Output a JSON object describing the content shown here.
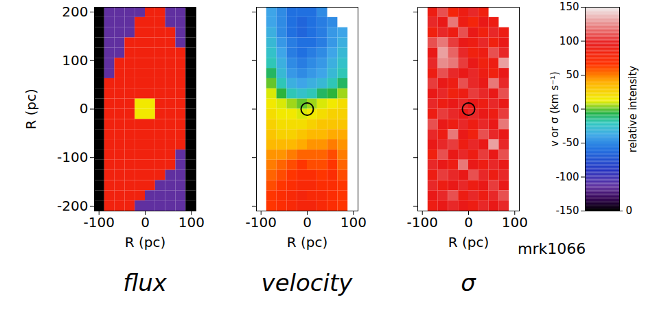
{
  "chart_data": [
    {
      "type": "heatmap",
      "title": "flux",
      "x_label": "R (pc)",
      "y_label": "R (pc)",
      "xlim": [
        -110,
        110
      ],
      "ylim": [
        -210,
        210
      ],
      "xticks": [
        -100,
        0,
        100
      ],
      "yticks": [
        -200,
        -100,
        0,
        100,
        200
      ],
      "tick_labels": true,
      "cells_lim": [
        0,
        1
      ],
      "x_bins": [
        -110,
        -88,
        -66,
        -44,
        -22,
        0,
        22,
        44,
        66,
        88,
        110
      ],
      "y_bins": [
        210,
        189,
        168,
        147,
        126,
        105,
        84,
        63,
        42,
        21,
        0,
        -21,
        -42,
        -63,
        -84,
        -105,
        -126,
        -147,
        -168,
        -189,
        -210
      ],
      "cells": [
        [
          0,
          0.12,
          0.12,
          0.12,
          0.12,
          0.78,
          0.78,
          0.12,
          0.12,
          0
        ],
        [
          0,
          0.12,
          0.12,
          0.12,
          0.78,
          0.78,
          0.78,
          0.12,
          0.12,
          0
        ],
        [
          0,
          0.12,
          0.12,
          0.12,
          0.78,
          0.78,
          0.78,
          0.78,
          0.12,
          0
        ],
        [
          0,
          0.12,
          0.12,
          0.78,
          0.78,
          0.78,
          0.78,
          0.78,
          0.12,
          0
        ],
        [
          0,
          0.12,
          0.12,
          0.78,
          0.78,
          0.78,
          0.78,
          0.78,
          0.78,
          0
        ],
        [
          0,
          0.12,
          0.78,
          0.78,
          0.78,
          0.78,
          0.78,
          0.78,
          0.78,
          0
        ],
        [
          0,
          0.12,
          0.78,
          0.78,
          0.78,
          0.78,
          0.78,
          0.78,
          0.78,
          0
        ],
        [
          0,
          0.78,
          0.78,
          0.78,
          0.78,
          0.78,
          0.78,
          0.78,
          0.78,
          0
        ],
        [
          0,
          0.78,
          0.78,
          0.78,
          0.78,
          0.78,
          0.78,
          0.78,
          0.78,
          0
        ],
        [
          0,
          0.78,
          0.78,
          0.78,
          0.55,
          0.55,
          0.78,
          0.78,
          0.78,
          0
        ],
        [
          0,
          0.78,
          0.78,
          0.78,
          0.55,
          0.55,
          0.78,
          0.78,
          0.78,
          0
        ],
        [
          0,
          0.78,
          0.78,
          0.78,
          0.78,
          0.78,
          0.78,
          0.78,
          0.78,
          0
        ],
        [
          0,
          0.78,
          0.78,
          0.78,
          0.78,
          0.78,
          0.78,
          0.78,
          0.78,
          0
        ],
        [
          0,
          0.78,
          0.78,
          0.78,
          0.78,
          0.78,
          0.78,
          0.78,
          0.78,
          0
        ],
        [
          0,
          0.78,
          0.78,
          0.78,
          0.78,
          0.78,
          0.78,
          0.78,
          0.12,
          0
        ],
        [
          0,
          0.78,
          0.78,
          0.78,
          0.78,
          0.78,
          0.78,
          0.78,
          0.12,
          0
        ],
        [
          0,
          0.78,
          0.78,
          0.78,
          0.78,
          0.78,
          0.78,
          0.12,
          0.12,
          0
        ],
        [
          0,
          0.78,
          0.78,
          0.78,
          0.78,
          0.78,
          0.12,
          0.12,
          0.12,
          0
        ],
        [
          0,
          0.78,
          0.78,
          0.78,
          0.78,
          0.12,
          0.12,
          0.12,
          0.12,
          0
        ],
        [
          0,
          0.78,
          0.78,
          0.78,
          0.12,
          0.12,
          0.12,
          0.12,
          0.12,
          0
        ]
      ]
    },
    {
      "type": "heatmap",
      "title": "velocity",
      "x_label": "R (pc)",
      "xlim": [
        -110,
        110
      ],
      "ylim": [
        -210,
        210
      ],
      "xticks": [
        -100,
        0,
        100
      ],
      "yticks": [
        -200,
        -100,
        0,
        100,
        200
      ],
      "tick_labels": "x",
      "cells_lim": [
        -150,
        150
      ],
      "marker": "circle-plus",
      "nucleus": {
        "x": 0,
        "y": 0
      },
      "x_bins": [
        -110,
        -88,
        -66,
        -44,
        -22,
        0,
        22,
        44,
        66,
        88,
        110
      ],
      "y_bins": [
        210,
        189,
        168,
        147,
        126,
        105,
        84,
        63,
        42,
        21,
        0,
        -21,
        -42,
        -63,
        -84,
        -105,
        -126,
        -147,
        -168,
        -189,
        -210
      ],
      "cells": [
        [
          null,
          -40,
          -50,
          -60,
          -60,
          -60,
          -50,
          null,
          null,
          null
        ],
        [
          null,
          -40,
          -50,
          -60,
          -65,
          -60,
          -55,
          -50,
          null,
          null
        ],
        [
          null,
          -35,
          -50,
          -60,
          -65,
          -60,
          -55,
          -45,
          -40,
          null
        ],
        [
          null,
          -30,
          -45,
          -55,
          -60,
          -60,
          -55,
          -45,
          -35,
          null
        ],
        [
          null,
          -25,
          -40,
          -55,
          -60,
          -55,
          -50,
          -40,
          -30,
          null
        ],
        [
          null,
          -20,
          -35,
          -50,
          -55,
          -50,
          -45,
          -35,
          -25,
          null
        ],
        [
          null,
          -10,
          -30,
          -45,
          -50,
          -45,
          -40,
          -30,
          -20,
          null
        ],
        [
          null,
          0,
          -20,
          -35,
          -40,
          -35,
          -30,
          -20,
          -10,
          null
        ],
        [
          null,
          10,
          -5,
          -20,
          -25,
          -20,
          -10,
          -5,
          5,
          null
        ],
        [
          null,
          15,
          10,
          5,
          0,
          5,
          10,
          15,
          20,
          null
        ],
        [
          null,
          20,
          15,
          15,
          10,
          15,
          20,
          25,
          25,
          null
        ],
        [
          null,
          25,
          20,
          20,
          20,
          25,
          30,
          30,
          30,
          null
        ],
        [
          null,
          30,
          25,
          25,
          30,
          35,
          35,
          40,
          40,
          null
        ],
        [
          null,
          35,
          35,
          35,
          40,
          45,
          45,
          50,
          45,
          null
        ],
        [
          null,
          45,
          45,
          50,
          55,
          55,
          55,
          60,
          50,
          null
        ],
        [
          null,
          50,
          55,
          60,
          65,
          60,
          60,
          65,
          55,
          null
        ],
        [
          null,
          55,
          60,
          65,
          70,
          70,
          65,
          70,
          60,
          null
        ],
        [
          null,
          60,
          65,
          70,
          75,
          75,
          70,
          70,
          65,
          null
        ],
        [
          null,
          65,
          70,
          75,
          80,
          75,
          75,
          70,
          65,
          null
        ],
        [
          null,
          65,
          70,
          75,
          80,
          80,
          75,
          70,
          65,
          null
        ]
      ]
    },
    {
      "type": "heatmap",
      "title": "σ",
      "x_label": "R (pc)",
      "xlim": [
        -110,
        110
      ],
      "ylim": [
        -210,
        210
      ],
      "xticks": [
        -100,
        0,
        100
      ],
      "yticks": [
        -200,
        -100,
        0,
        100,
        200
      ],
      "tick_labels": "x",
      "cells_lim": [
        -150,
        150
      ],
      "marker": "circle-plus",
      "nucleus": {
        "x": 0,
        "y": 0
      },
      "x_bins": [
        -110,
        -88,
        -66,
        -44,
        -22,
        0,
        22,
        44,
        66,
        88,
        110
      ],
      "y_bins": [
        210,
        189,
        168,
        147,
        126,
        105,
        84,
        63,
        42,
        21,
        0,
        -21,
        -42,
        -63,
        -84,
        -105,
        -126,
        -147,
        -168,
        -189,
        -210
      ],
      "cells": [
        [
          null,
          90,
          110,
          80,
          90,
          100,
          85,
          null,
          null,
          null
        ],
        [
          null,
          100,
          95,
          120,
          90,
          80,
          95,
          90,
          null,
          null
        ],
        [
          null,
          85,
          100,
          90,
          110,
          95,
          85,
          100,
          90,
          null
        ],
        [
          null,
          110,
          120,
          105,
          95,
          90,
          100,
          85,
          95,
          null
        ],
        [
          null,
          95,
          130,
          115,
          100,
          85,
          90,
          110,
          100,
          null
        ],
        [
          null,
          100,
          125,
          120,
          105,
          95,
          85,
          90,
          130,
          null
        ],
        [
          null,
          90,
          110,
          100,
          95,
          100,
          90,
          85,
          95,
          null
        ],
        [
          null,
          105,
          95,
          90,
          110,
          100,
          95,
          120,
          100,
          null
        ],
        [
          null,
          95,
          100,
          85,
          90,
          105,
          100,
          95,
          110,
          null
        ],
        [
          null,
          100,
          90,
          95,
          100,
          95,
          90,
          100,
          95,
          null
        ],
        [
          null,
          90,
          105,
          100,
          95,
          100,
          95,
          90,
          105,
          null
        ],
        [
          null,
          110,
          95,
          90,
          100,
          90,
          100,
          95,
          120,
          null
        ],
        [
          null,
          100,
          90,
          120,
          95,
          85,
          110,
          100,
          95,
          null
        ],
        [
          null,
          95,
          100,
          105,
          90,
          100,
          95,
          130,
          100,
          null
        ],
        [
          null,
          85,
          110,
          95,
          100,
          90,
          105,
          95,
          110,
          null
        ],
        [
          null,
          100,
          95,
          90,
          120,
          95,
          90,
          100,
          95,
          null
        ],
        [
          null,
          90,
          105,
          100,
          95,
          110,
          100,
          90,
          100,
          null
        ],
        [
          null,
          100,
          90,
          95,
          100,
          90,
          95,
          105,
          95,
          null
        ],
        [
          null,
          95,
          100,
          110,
          90,
          100,
          90,
          100,
          110,
          null
        ],
        [
          null,
          90,
          95,
          100,
          95,
          90,
          100,
          95,
          100,
          null
        ]
      ]
    },
    {
      "type": "colorbar",
      "y_label": "v or σ (km s⁻¹)",
      "ylim": [
        -150,
        150
      ],
      "yticks": [
        -150,
        -100,
        -50,
        0,
        50,
        100,
        150
      ],
      "intensity_label": "relative intensity",
      "intensity_lim": [
        0,
        1
      ],
      "intensity_ticks": [
        0
      ],
      "annotation": "mrk1066"
    }
  ]
}
